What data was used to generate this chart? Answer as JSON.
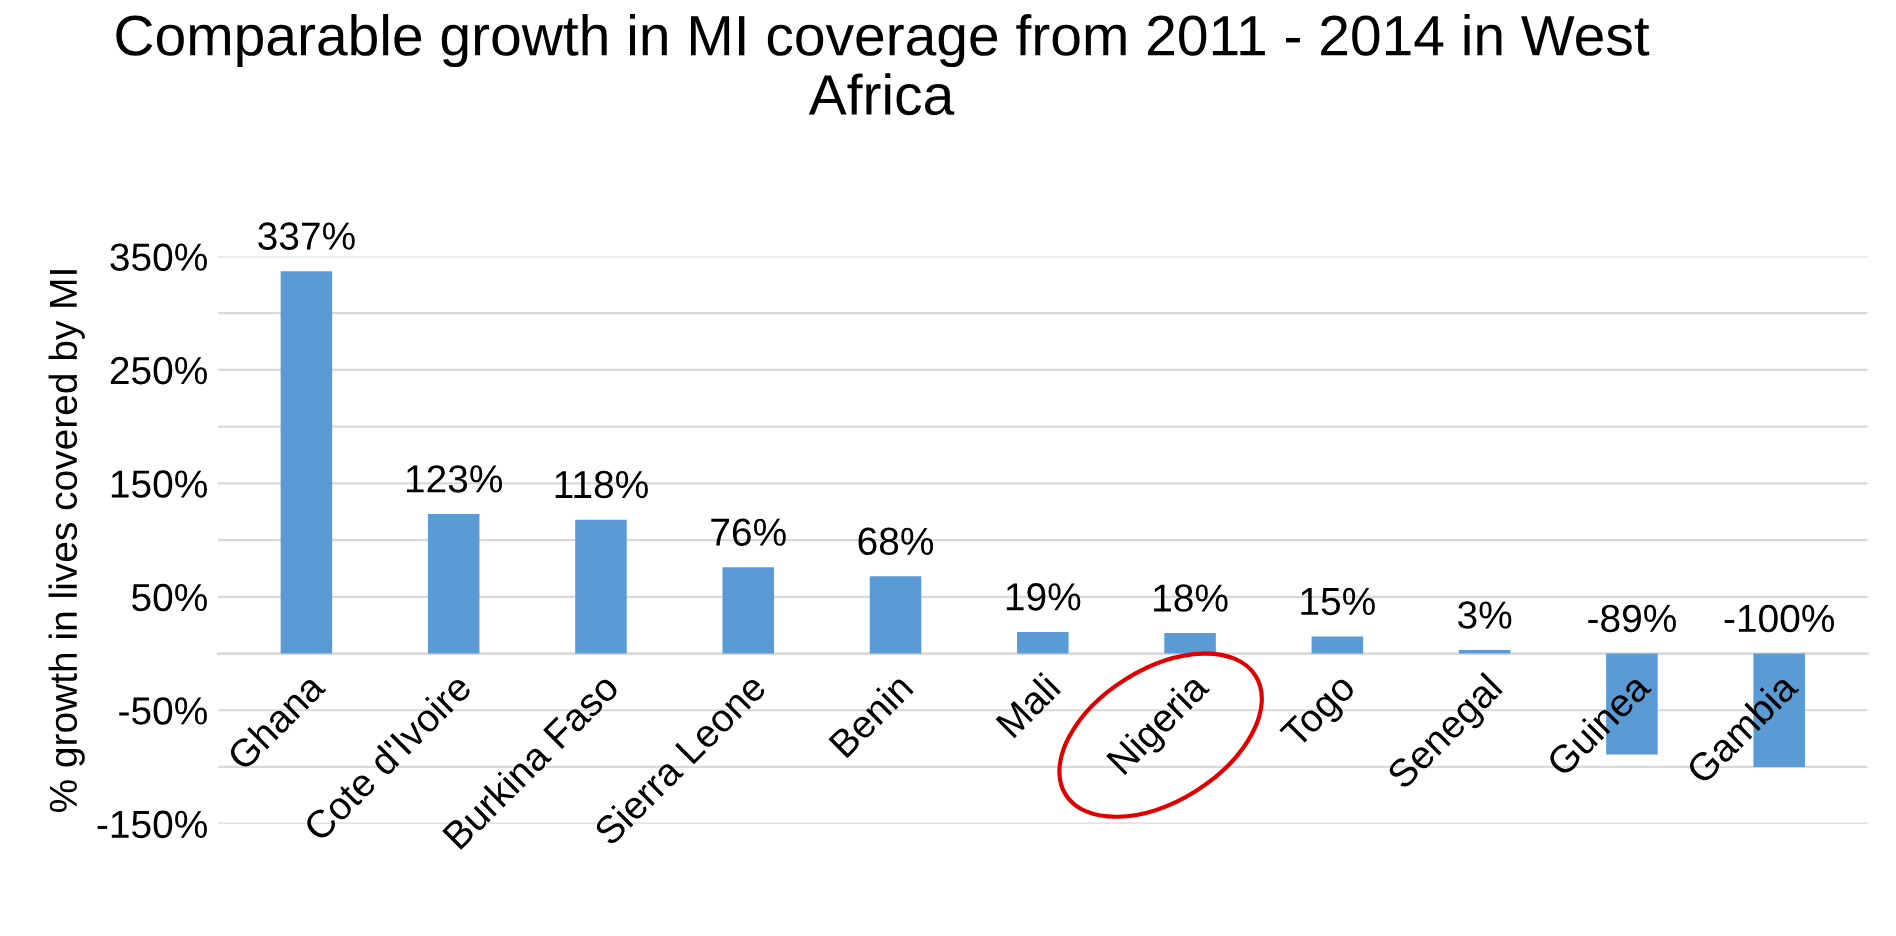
{
  "chart_data": {
    "type": "bar",
    "title": "Comparable growth in MI coverage from 2011 - 2014 in West Africa",
    "ylabel": "% growth in lives covered by MI",
    "categories": [
      "Ghana",
      "Cote d'Ivoire",
      "Burkina Faso",
      "Sierra Leone",
      "Benin",
      "Mali",
      "Nigeria",
      "Togo",
      "Senegal",
      "Guinea",
      "Gambia"
    ],
    "values": [
      337,
      123,
      118,
      76,
      68,
      19,
      18,
      15,
      3,
      -89,
      -100
    ],
    "value_labels": [
      "337%",
      "123%",
      "118%",
      "76%",
      "68%",
      "19%",
      "18%",
      "15%",
      "3%",
      "-89%",
      "-100%"
    ],
    "color": "#5b9bd5",
    "ylim": [
      -150,
      350
    ],
    "yticks": [
      {
        "value": -150,
        "label": "-150%"
      },
      {
        "value": -100,
        "label": null
      },
      {
        "value": -50,
        "label": "-50%"
      },
      {
        "value": 0,
        "label": null
      },
      {
        "value": 50,
        "label": "50%"
      },
      {
        "value": 100,
        "label": null
      },
      {
        "value": 150,
        "label": "150%"
      },
      {
        "value": 200,
        "label": null
      },
      {
        "value": 250,
        "label": "250%"
      },
      {
        "value": 300,
        "label": null
      },
      {
        "value": 350,
        "label": "350%"
      }
    ],
    "grid": "y"
  }
}
